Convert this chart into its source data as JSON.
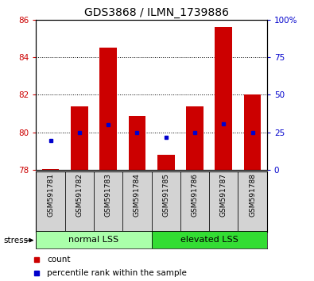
{
  "title": "GDS3868 / ILMN_1739886",
  "samples": [
    "GSM591781",
    "GSM591782",
    "GSM591783",
    "GSM591784",
    "GSM591785",
    "GSM591786",
    "GSM591787",
    "GSM591788"
  ],
  "counts": [
    78.05,
    81.4,
    84.5,
    80.9,
    78.8,
    81.4,
    85.6,
    82.0
  ],
  "percentile_ranks": [
    19.5,
    25.0,
    30.0,
    25.0,
    22.0,
    25.0,
    30.5,
    25.0
  ],
  "ylim_left": [
    78,
    86
  ],
  "ylim_right": [
    0,
    100
  ],
  "yticks_left": [
    78,
    80,
    82,
    84,
    86
  ],
  "yticks_right": [
    0,
    25,
    50,
    75,
    100
  ],
  "bar_bottom": 78,
  "bar_color": "#CC0000",
  "dot_color": "#0000CC",
  "group1_label": "normal LSS",
  "group2_label": "elevated LSS",
  "group1_indices": [
    0,
    1,
    2,
    3
  ],
  "group2_indices": [
    4,
    5,
    6,
    7
  ],
  "stress_label": "stress",
  "legend1": "count",
  "legend2": "percentile rank within the sample",
  "group1_bg": "#AAFFAA",
  "group2_bg": "#33DD33",
  "sample_bg": "#D3D3D3",
  "bar_color_legend": "#CC0000",
  "dot_color_legend": "#0000CC",
  "title_fontsize": 10,
  "tick_fontsize": 7.5,
  "sample_fontsize": 6.5,
  "group_fontsize": 8,
  "legend_fontsize": 7.5
}
